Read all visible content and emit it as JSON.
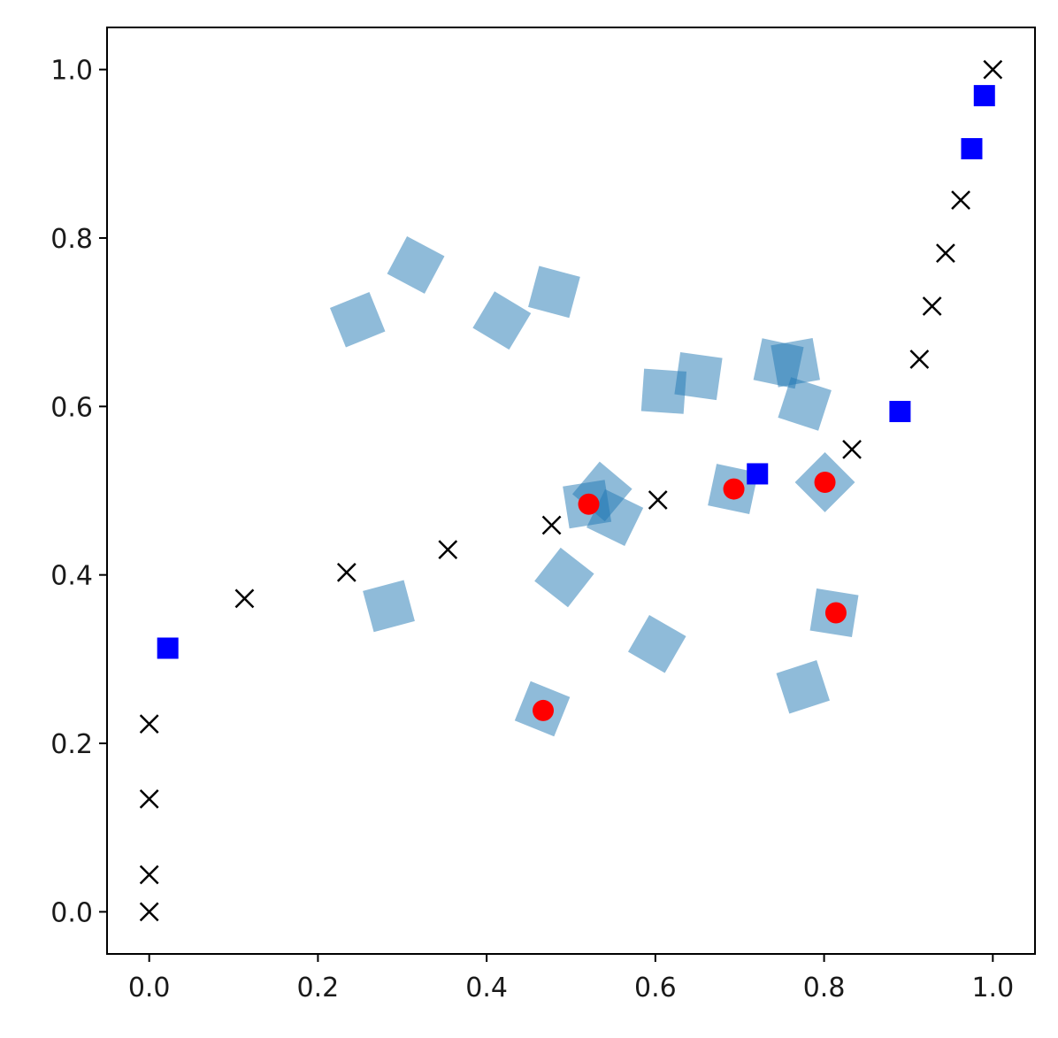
{
  "chart_data": {
    "type": "scatter",
    "title": "",
    "xlabel": "",
    "ylabel": "",
    "xlim": [
      -0.05,
      1.05
    ],
    "ylim": [
      -0.05,
      1.05
    ],
    "grid": false,
    "legend": "none",
    "x_ticks": [
      "0.0",
      "0.2",
      "0.4",
      "0.6",
      "0.8",
      "1.0"
    ],
    "y_ticks": [
      "0.0",
      "0.2",
      "0.4",
      "0.6",
      "0.8",
      "1.0"
    ],
    "series": [
      {
        "marker": "rotated-square",
        "color": "#1f77b4",
        "opacity": 0.5,
        "points": [
          [
            0.316,
            0.768
          ],
          [
            0.247,
            0.703
          ],
          [
            0.418,
            0.702
          ],
          [
            0.48,
            0.736
          ],
          [
            0.61,
            0.618
          ],
          [
            0.651,
            0.636
          ],
          [
            0.746,
            0.651
          ],
          [
            0.766,
            0.652
          ],
          [
            0.777,
            0.603
          ],
          [
            0.537,
            0.499
          ],
          [
            0.519,
            0.484
          ],
          [
            0.552,
            0.468
          ],
          [
            0.692,
            0.502
          ],
          [
            0.801,
            0.51
          ],
          [
            0.812,
            0.355
          ],
          [
            0.284,
            0.363
          ],
          [
            0.492,
            0.397
          ],
          [
            0.602,
            0.318
          ],
          [
            0.775,
            0.267
          ],
          [
            0.466,
            0.241
          ]
        ]
      },
      {
        "marker": "circle",
        "color": "#ff0000",
        "points": [
          [
            0.521,
            0.484
          ],
          [
            0.693,
            0.502
          ],
          [
            0.801,
            0.51
          ],
          [
            0.814,
            0.355
          ],
          [
            0.467,
            0.239
          ]
        ]
      },
      {
        "marker": "square",
        "color": "#0000ff",
        "points": [
          [
            0.022,
            0.313
          ],
          [
            0.721,
            0.52
          ],
          [
            0.89,
            0.594
          ],
          [
            0.975,
            0.906
          ],
          [
            0.99,
            0.969
          ]
        ]
      },
      {
        "marker": "x",
        "color": "#000000",
        "points": [
          [
            0.0,
            0.0
          ],
          [
            0.0,
            0.044
          ],
          [
            0.0,
            0.134
          ],
          [
            0.0,
            0.223
          ],
          [
            0.113,
            0.372
          ],
          [
            0.234,
            0.403
          ],
          [
            0.354,
            0.43
          ],
          [
            0.477,
            0.459
          ],
          [
            0.603,
            0.489
          ],
          [
            0.833,
            0.549
          ],
          [
            0.913,
            0.656
          ],
          [
            0.928,
            0.719
          ],
          [
            0.944,
            0.782
          ],
          [
            0.962,
            0.845
          ],
          [
            1.0,
            1.0
          ]
        ]
      }
    ]
  }
}
